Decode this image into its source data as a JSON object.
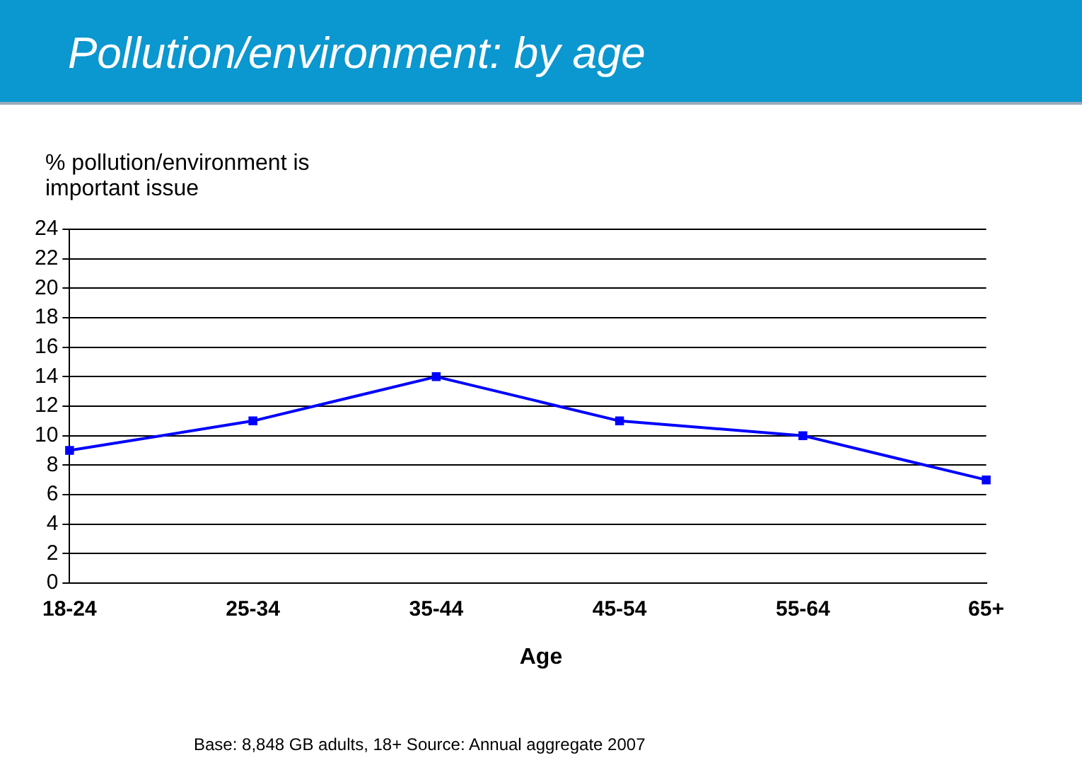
{
  "chart_data": {
    "type": "line",
    "title": "Pollution/environment: by age",
    "ylabel": "% pollution/environment is important issue",
    "xlabel": "Age",
    "categories": [
      "18-24",
      "25-34",
      "35-44",
      "45-54",
      "55-64",
      "65+"
    ],
    "series": [
      {
        "color": "#0000ff",
        "values": [
          9,
          11,
          14,
          11,
          10,
          7
        ]
      }
    ],
    "ylim": [
      0,
      24
    ],
    "yticks": [
      0,
      2,
      4,
      6,
      8,
      10,
      12,
      14,
      16,
      18,
      20,
      22,
      24
    ],
    "grid": "y",
    "legend": false,
    "marker": "square",
    "line_style": "solid",
    "annotations": [
      "Base: 8,848 GB adults, 18+ Source: Annual aggregate 2007"
    ]
  }
}
